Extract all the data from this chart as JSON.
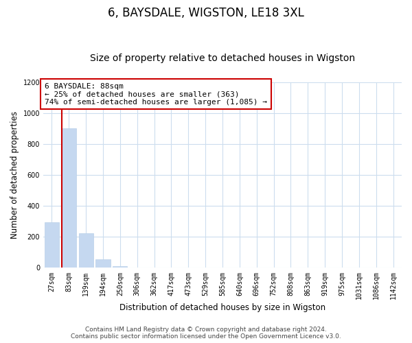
{
  "title": "6, BAYSDALE, WIGSTON, LE18 3XL",
  "subtitle": "Size of property relative to detached houses in Wigston",
  "xlabel": "Distribution of detached houses by size in Wigston",
  "ylabel": "Number of detached properties",
  "bar_labels": [
    "27sqm",
    "83sqm",
    "139sqm",
    "194sqm",
    "250sqm",
    "306sqm",
    "362sqm",
    "417sqm",
    "473sqm",
    "529sqm",
    "585sqm",
    "640sqm",
    "696sqm",
    "752sqm",
    "808sqm",
    "863sqm",
    "919sqm",
    "975sqm",
    "1031sqm",
    "1086sqm",
    "1142sqm"
  ],
  "bar_values": [
    295,
    900,
    225,
    55,
    10,
    0,
    0,
    0,
    0,
    0,
    0,
    0,
    0,
    0,
    0,
    0,
    0,
    0,
    0,
    0,
    0
  ],
  "bar_color": "#c5d8f0",
  "bar_edge_color": "#b8cfe8",
  "property_line_color": "#cc0000",
  "annotation_text": "6 BAYSDALE: 88sqm\n← 25% of detached houses are smaller (363)\n74% of semi-detached houses are larger (1,085) →",
  "annotation_box_color": "#ffffff",
  "annotation_box_edge_color": "#cc0000",
  "ylim": [
    0,
    1200
  ],
  "yticks": [
    0,
    200,
    400,
    600,
    800,
    1000,
    1200
  ],
  "footer_line1": "Contains HM Land Registry data © Crown copyright and database right 2024.",
  "footer_line2": "Contains public sector information licensed under the Open Government Licence v3.0.",
  "background_color": "#ffffff",
  "grid_color": "#ccddee",
  "title_fontsize": 12,
  "subtitle_fontsize": 10,
  "axis_label_fontsize": 8.5,
  "tick_fontsize": 7,
  "annotation_fontsize": 8,
  "footer_fontsize": 6.5
}
